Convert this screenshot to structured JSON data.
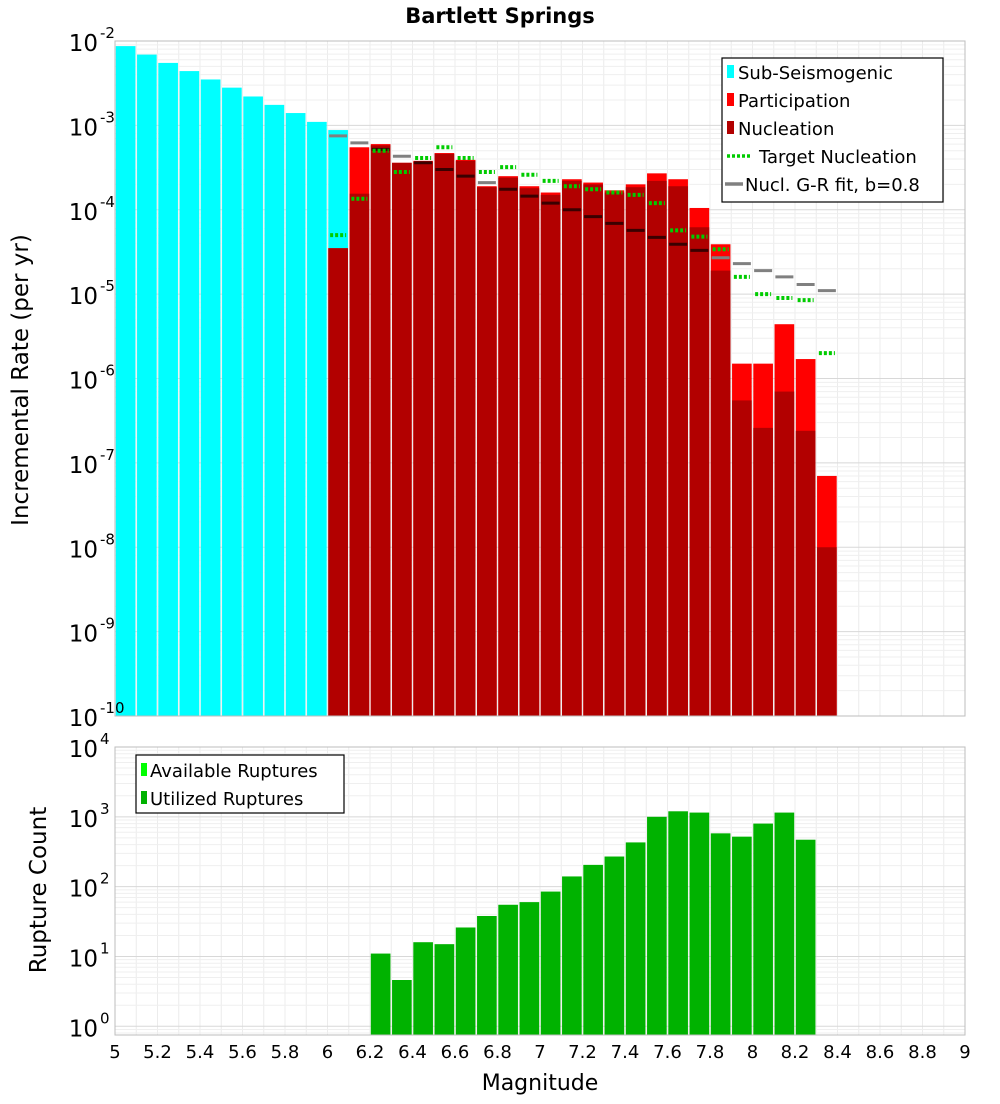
{
  "chart_data": [
    {
      "type": "bar",
      "panel": "top",
      "title": "Bartlett Springs",
      "xlabel": "",
      "ylabel": "Incremental Rate (per yr)",
      "yscale": "log",
      "xlim": [
        5,
        9
      ],
      "ylim": [
        1e-10,
        0.01
      ],
      "y_ticks": [
        {
          "base": "10",
          "exp": "-10",
          "value": 1e-10
        },
        {
          "base": "10",
          "exp": "-9",
          "value": 1e-09
        },
        {
          "base": "10",
          "exp": "-8",
          "value": 1e-08
        },
        {
          "base": "10",
          "exp": "-7",
          "value": 1e-07
        },
        {
          "base": "10",
          "exp": "-6",
          "value": 1e-06
        },
        {
          "base": "10",
          "exp": "-5",
          "value": 1e-05
        },
        {
          "base": "10",
          "exp": "-4",
          "value": 0.0001
        },
        {
          "base": "10",
          "exp": "-3",
          "value": 0.001
        },
        {
          "base": "10",
          "exp": "-2",
          "value": 0.01
        }
      ],
      "grid": true,
      "legend_position": "top-right",
      "series": [
        {
          "name": "Sub-Seismogenic",
          "kind": "bar",
          "color": "#00ffff",
          "x": [
            5.05,
            5.15,
            5.25,
            5.35,
            5.45,
            5.55,
            5.65,
            5.75,
            5.85,
            5.95,
            6.05
          ],
          "values": [
            0.0087,
            0.0069,
            0.0055,
            0.0044,
            0.0035,
            0.0028,
            0.0022,
            0.00175,
            0.0014,
            0.0011,
            0.00088
          ]
        },
        {
          "name": "Participation",
          "kind": "bar",
          "color": "#ff0000",
          "x": [
            6.05,
            6.15,
            6.25,
            6.35,
            6.45,
            6.55,
            6.65,
            6.75,
            6.85,
            6.95,
            7.05,
            7.15,
            7.25,
            7.35,
            7.45,
            7.55,
            7.65,
            7.75,
            7.85,
            7.95,
            8.05,
            8.15,
            8.25,
            8.35
          ],
          "values": [
            3.5e-05,
            0.00055,
            0.0006,
            0.00036,
            0.00038,
            0.00047,
            0.00039,
            0.00019,
            0.00025,
            0.00019,
            0.00016,
            0.00023,
            0.00021,
            0.00017,
            0.0002,
            0.00027,
            0.00023,
            0.000105,
            3.9e-05,
            1.5e-06,
            1.5e-06,
            4.4e-06,
            1.7e-06,
            7e-08
          ]
        },
        {
          "name": "Nucleation",
          "kind": "bar",
          "color": "#b20000",
          "x": [
            6.05,
            6.15,
            6.25,
            6.35,
            6.45,
            6.55,
            6.65,
            6.75,
            6.85,
            6.95,
            7.05,
            7.15,
            7.25,
            7.35,
            7.45,
            7.55,
            7.65,
            7.75,
            7.85,
            7.95,
            8.05,
            8.15,
            8.25,
            8.35
          ],
          "values": [
            3.5e-05,
            0.000155,
            0.00058,
            0.00036,
            0.00037,
            0.00046,
            0.00038,
            0.000185,
            0.00024,
            0.00018,
            0.00015,
            0.00022,
            0.0002,
            0.00016,
            0.000185,
            0.00022,
            0.00019,
            6.2e-05,
            1.9e-05,
            5.5e-07,
            2.6e-07,
            7e-07,
            2.4e-07,
            1e-08
          ]
        },
        {
          "name": "Target Nucleation",
          "kind": "dotted-step",
          "color": "#00cc00",
          "x": [
            6.05,
            6.15,
            6.25,
            6.35,
            6.45,
            6.55,
            6.65,
            6.75,
            6.85,
            6.95,
            7.05,
            7.15,
            7.25,
            7.35,
            7.45,
            7.55,
            7.65,
            7.75,
            7.85,
            7.95,
            8.05,
            8.15,
            8.25,
            8.35
          ],
          "values": [
            5e-05,
            0.000135,
            0.0005,
            0.00028,
            0.00041,
            0.00055,
            0.00041,
            0.00028,
            0.00032,
            0.00026,
            0.00022,
            0.00019,
            0.000175,
            0.00016,
            0.00015,
            0.00012,
            5.7e-05,
            4.8e-05,
            3.4e-05,
            1.6e-05,
            1e-05,
            9e-06,
            8.5e-06,
            2e-06
          ]
        },
        {
          "name": "Nucl. G-R fit, b=0.8",
          "kind": "step",
          "color": "#808080",
          "x": [
            6.05,
            6.15,
            6.25,
            6.35,
            6.45,
            6.55,
            6.65,
            6.75,
            6.85,
            6.95,
            7.05,
            7.15,
            7.25,
            7.35,
            7.45,
            7.55,
            7.65,
            7.75,
            7.85,
            7.95,
            8.05,
            8.15,
            8.25,
            8.35
          ],
          "values": [
            0.00075,
            0.00062,
            0.00052,
            0.00043,
            0.00036,
            0.0003,
            0.00025,
            0.00021,
            0.000175,
            0.000145,
            0.00012,
            0.0001,
            8.3e-05,
            6.9e-05,
            5.7e-05,
            4.7e-05,
            3.9e-05,
            3.3e-05,
            2.7e-05,
            2.3e-05,
            1.9e-05,
            1.6e-05,
            1.3e-05,
            1.1e-05
          ]
        }
      ]
    },
    {
      "type": "bar",
      "panel": "bottom",
      "title": "",
      "xlabel": "Magnitude",
      "ylabel": "Rupture Count",
      "yscale": "log",
      "xlim": [
        5,
        9
      ],
      "ylim": [
        0.75,
        10000
      ],
      "x_ticks": [
        "5",
        "5.2",
        "5.4",
        "5.6",
        "5.8",
        "6",
        "6.2",
        "6.4",
        "6.6",
        "6.8",
        "7",
        "7.2",
        "7.4",
        "7.6",
        "7.8",
        "8",
        "8.2",
        "8.4",
        "8.6",
        "8.8",
        "9"
      ],
      "y_ticks": [
        {
          "base": "10",
          "exp": "0",
          "value": 1
        },
        {
          "base": "10",
          "exp": "1",
          "value": 10
        },
        {
          "base": "10",
          "exp": "2",
          "value": 100
        },
        {
          "base": "10",
          "exp": "3",
          "value": 1000
        },
        {
          "base": "10",
          "exp": "4",
          "value": 10000
        }
      ],
      "grid": true,
      "legend_position": "top-left",
      "series": [
        {
          "name": "Available Ruptures",
          "kind": "bar",
          "color": "#00ff00",
          "x": [],
          "values": []
        },
        {
          "name": "Utilized Ruptures",
          "kind": "bar",
          "color": "#00b200",
          "x": [
            6.25,
            6.35,
            6.45,
            6.55,
            6.65,
            6.75,
            6.85,
            6.95,
            7.05,
            7.15,
            7.25,
            7.35,
            7.45,
            7.55,
            7.65,
            7.75,
            7.85,
            7.95,
            8.05,
            8.15,
            8.25
          ],
          "values": [
            11,
            4.6,
            16,
            15,
            26,
            38,
            55,
            60,
            85,
            140,
            205,
            270,
            430,
            1000,
            1200,
            1150,
            580,
            520,
            800,
            1150,
            470
          ]
        }
      ]
    }
  ]
}
